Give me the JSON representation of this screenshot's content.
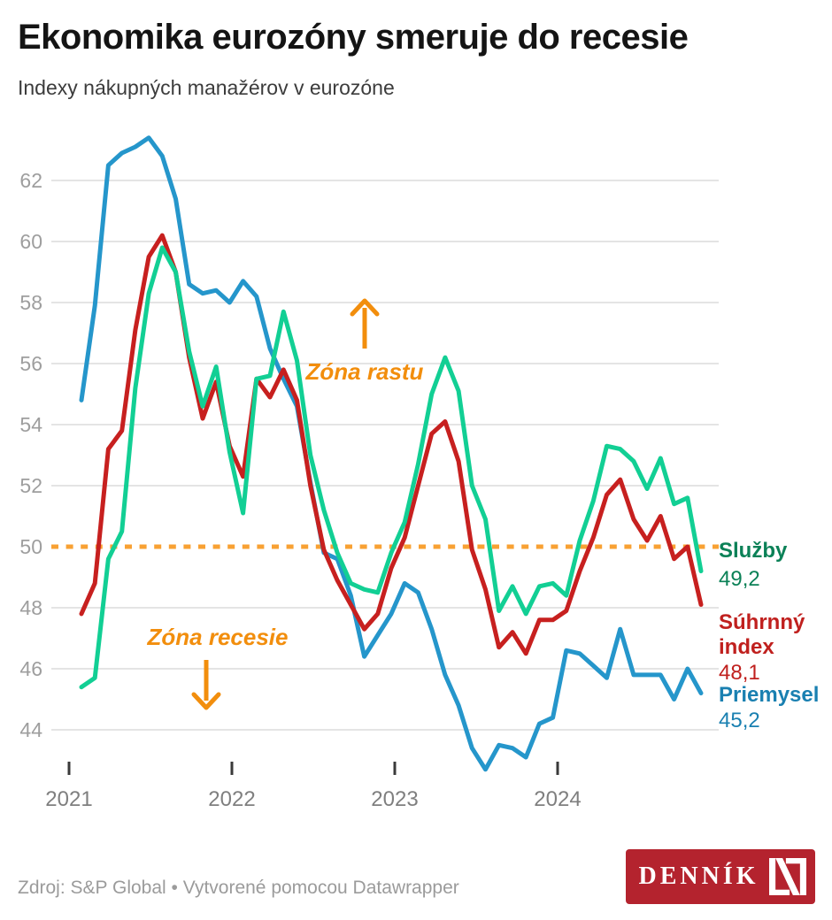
{
  "header": {
    "title": "Ekonomika eurozóny smeruje do recesie",
    "subtitle": "Indexy nákupných manažérov v eurozóne"
  },
  "annotations": {
    "growth": {
      "text": "Zóna rastu"
    },
    "recession": {
      "text": "Zóna recesie"
    }
  },
  "legend": {
    "services": {
      "label": "Služby",
      "value": "49,2"
    },
    "composite": {
      "label": "Súhrnný index",
      "value": "48,1"
    },
    "industry": {
      "label": "Priemysel",
      "value": "45,2"
    }
  },
  "footer": {
    "source": "Zdroj: S&P Global • Vytvorené pomocou Datawrapper"
  },
  "logo": {
    "text": "DENNÍK"
  },
  "colors": {
    "industry_line": "#2596cb",
    "composite_line": "#c7201f",
    "services_line": "#12cf94",
    "industry_text": "#1a80b1",
    "composite_text": "#c0201e",
    "services_text": "#0b8157",
    "reference_dots": "#f8a133",
    "annotation_orange": "#f28e0d",
    "grid": "#e4e4e4",
    "axis_label": "#9e9e9e",
    "year_label": "#7f7f7f",
    "tick": "#3a3a3a",
    "logo_bg": "#b4232e"
  },
  "chart_data": {
    "type": "line",
    "title": "Indexy nákupných manažérov v eurozóne",
    "x_start": "2021-01",
    "x_end": "2024-11",
    "frequency": "monthly",
    "x_year_ticks": [
      "2021",
      "2022",
      "2023",
      "2024"
    ],
    "y_ticks": [
      44,
      46,
      48,
      50,
      52,
      54,
      56,
      58,
      60,
      62
    ],
    "ylim": [
      42.5,
      63.6
    ],
    "grid": true,
    "reference_line": {
      "value": 50,
      "style": "dotted"
    },
    "series": [
      {
        "key": "priemysel",
        "name": "Priemysel",
        "final_value": 45.2,
        "values": [
          54.8,
          57.9,
          62.5,
          62.9,
          63.1,
          63.4,
          62.8,
          61.4,
          58.6,
          58.3,
          58.4,
          58.0,
          58.7,
          58.2,
          56.5,
          55.5,
          54.6,
          52.1,
          49.8,
          49.6,
          48.4,
          46.4,
          47.1,
          47.8,
          48.8,
          48.5,
          47.3,
          45.8,
          44.8,
          43.4,
          42.7,
          43.5,
          43.4,
          43.1,
          44.2,
          44.4,
          46.6,
          46.5,
          46.1,
          45.7,
          47.3,
          45.8,
          45.8,
          45.8,
          45.0,
          46.0,
          45.2
        ]
      },
      {
        "key": "suhrnny-index",
        "name": "Súhrnný index",
        "final_value": 48.1,
        "values": [
          47.8,
          48.8,
          53.2,
          53.8,
          57.1,
          59.5,
          60.2,
          59.0,
          56.2,
          54.2,
          55.4,
          53.3,
          52.3,
          55.5,
          54.9,
          55.8,
          54.8,
          52.0,
          49.9,
          48.9,
          48.1,
          47.3,
          47.8,
          49.3,
          50.3,
          52.0,
          53.7,
          54.1,
          52.8,
          49.9,
          48.6,
          46.7,
          47.2,
          46.5,
          47.6,
          47.6,
          47.9,
          49.2,
          50.3,
          51.7,
          52.2,
          50.9,
          50.2,
          51.0,
          49.6,
          50.0,
          48.1
        ]
      },
      {
        "key": "sluzby",
        "name": "Služby",
        "final_value": 49.2,
        "values": [
          45.4,
          45.7,
          49.6,
          50.5,
          55.2,
          58.3,
          59.8,
          59.0,
          56.4,
          54.6,
          55.9,
          53.1,
          51.1,
          55.5,
          55.6,
          57.7,
          56.1,
          53.0,
          51.2,
          49.8,
          48.8,
          48.6,
          48.5,
          49.8,
          50.8,
          52.7,
          55.0,
          56.2,
          55.1,
          52.0,
          50.9,
          47.9,
          48.7,
          47.8,
          48.7,
          48.8,
          48.4,
          50.2,
          51.5,
          53.3,
          53.2,
          52.8,
          51.9,
          52.9,
          51.4,
          51.6,
          49.2
        ]
      }
    ]
  }
}
